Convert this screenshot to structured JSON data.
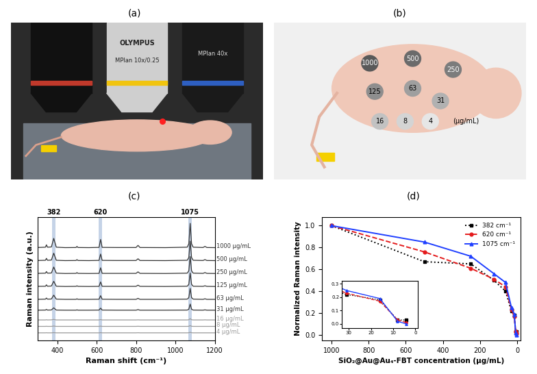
{
  "panels": {
    "labels": [
      "(a)",
      "(b)",
      "(c)",
      "(d)"
    ]
  },
  "photo_a": {
    "brand": "OLYMPUS",
    "objectives": [
      "MPlan 10x/0.25",
      "MPlan 40x"
    ]
  },
  "photo_b": {
    "spots": [
      "1000",
      "500",
      "250",
      "125",
      "63",
      "31",
      "16",
      "8",
      "4"
    ],
    "unit": "(μg/mL)"
  },
  "chart_data": [
    {
      "type": "line",
      "xlabel": "Raman shift (cm⁻¹)",
      "ylabel": "Raman intensity (a.u.)",
      "x": [
        300,
        340,
        345,
        350,
        370,
        382,
        395,
        440,
        495,
        500,
        505,
        560,
        612,
        620,
        628,
        700,
        800,
        810,
        820,
        950,
        1060,
        1068,
        1075,
        1082,
        1090,
        1140,
        1150,
        1160,
        1200
      ],
      "series": [
        {
          "name": "1000 μg/mL",
          "color": "#333333",
          "values": [
            8.65,
            8.68,
            8.9,
            8.68,
            8.7,
            9.5,
            8.68,
            8.64,
            8.65,
            8.75,
            8.65,
            8.64,
            8.66,
            9.4,
            8.66,
            8.65,
            8.65,
            8.85,
            8.65,
            8.64,
            8.68,
            9.0,
            10.9,
            9.0,
            8.68,
            8.65,
            8.75,
            8.65,
            8.64
          ]
        },
        {
          "name": "500 μg/mL",
          "color": "#333333",
          "values": [
            7.44,
            7.46,
            7.64,
            7.46,
            7.48,
            8.12,
            7.46,
            7.43,
            7.44,
            7.52,
            7.44,
            7.43,
            7.45,
            8.04,
            7.45,
            7.44,
            7.44,
            7.6,
            7.44,
            7.43,
            7.46,
            7.72,
            9.24,
            7.72,
            7.46,
            7.44,
            7.52,
            7.44,
            7.43
          ]
        },
        {
          "name": "250 μg/mL",
          "color": "#333333",
          "values": [
            6.24,
            6.26,
            6.41,
            6.26,
            6.27,
            6.83,
            6.26,
            6.23,
            6.24,
            6.31,
            6.24,
            6.23,
            6.24,
            6.76,
            6.24,
            6.24,
            6.24,
            6.38,
            6.24,
            6.23,
            6.26,
            6.48,
            7.81,
            6.48,
            6.26,
            6.24,
            6.31,
            6.24,
            6.23
          ]
        },
        {
          "name": "125 μg/mL",
          "color": "#333333",
          "values": [
            5.03,
            5.04,
            5.17,
            5.04,
            5.06,
            5.5,
            5.04,
            5.02,
            5.03,
            5.08,
            5.03,
            5.02,
            5.03,
            5.44,
            5.03,
            5.03,
            5.03,
            5.14,
            5.03,
            5.02,
            5.04,
            5.22,
            6.27,
            5.22,
            5.04,
            5.03,
            5.08,
            5.03,
            5.02
          ]
        },
        {
          "name": "63 μg/mL",
          "color": "#333333",
          "values": [
            3.82,
            3.84,
            3.94,
            3.84,
            3.85,
            4.21,
            3.84,
            3.82,
            3.82,
            3.87,
            3.82,
            3.82,
            3.83,
            4.16,
            3.83,
            3.82,
            3.82,
            3.91,
            3.82,
            3.82,
            3.84,
            3.98,
            4.84,
            3.98,
            3.84,
            3.82,
            3.87,
            3.82,
            3.82
          ]
        },
        {
          "name": "31 μg/mL",
          "color": "#333333",
          "values": [
            2.81,
            2.82,
            2.88,
            2.82,
            2.83,
            3.03,
            2.82,
            2.81,
            2.81,
            2.84,
            2.81,
            2.81,
            2.82,
            3.0,
            2.82,
            2.81,
            2.81,
            2.86,
            2.81,
            2.81,
            2.82,
            2.9,
            3.38,
            2.9,
            2.82,
            2.81,
            2.84,
            2.81,
            2.81
          ]
        },
        {
          "name": "16 μg/mL",
          "color": "#9a9a9a",
          "values": [
            1.9,
            1.9,
            1.92,
            1.9,
            1.91,
            1.95,
            1.9,
            1.9,
            1.9,
            1.91,
            1.9,
            1.9,
            1.9,
            1.94,
            1.9,
            1.9,
            1.9,
            1.91,
            1.9,
            1.9,
            1.9,
            1.92,
            2.02,
            1.92,
            1.9,
            1.9,
            1.91,
            1.9,
            1.9
          ]
        },
        {
          "name": "8 μg/mL",
          "color": "#9a9a9a",
          "values": [
            1.3,
            1.3,
            1.31,
            1.3,
            1.3,
            1.33,
            1.3,
            1.3,
            1.3,
            1.3,
            1.3,
            1.3,
            1.3,
            1.32,
            1.3,
            1.3,
            1.3,
            1.31,
            1.3,
            1.3,
            1.3,
            1.31,
            1.37,
            1.31,
            1.3,
            1.3,
            1.3,
            1.3,
            1.3
          ]
        },
        {
          "name": "4 μg/mL",
          "color": "#9a9a9a",
          "values": [
            0.7,
            0.7,
            0.71,
            0.7,
            0.7,
            0.72,
            0.7,
            0.7,
            0.7,
            0.7,
            0.7,
            0.7,
            0.7,
            0.72,
            0.7,
            0.7,
            0.7,
            0.71,
            0.7,
            0.7,
            0.7,
            0.71,
            0.75,
            0.71,
            0.7,
            0.7,
            0.7,
            0.7,
            0.7
          ]
        }
      ],
      "xlim": [
        300,
        1200
      ],
      "xticks": [
        400,
        600,
        800,
        1000,
        1200
      ],
      "ylim": [
        0,
        11.5
      ],
      "tick_labels": "x",
      "highlights": [
        382,
        620,
        1075
      ]
    },
    {
      "type": "line",
      "xlabel": "SiO₂@Au@Au₄-FBT concentration (μg/mL)",
      "ylabel": "Normalized Raman intensity",
      "x": [
        1000,
        500,
        250,
        125,
        63,
        31,
        16,
        8,
        4
      ],
      "series": [
        {
          "name": "382 cm⁻¹",
          "color": "#000000",
          "line_style": "dotted",
          "marker": "s",
          "values": [
            1.0,
            0.67,
            0.65,
            0.5,
            0.4,
            0.22,
            0.18,
            0.03,
            0.03
          ]
        },
        {
          "name": "620 cm⁻¹",
          "color": "#e41a1c",
          "line_style": "dashed",
          "marker": "o",
          "values": [
            1.0,
            0.76,
            0.61,
            0.51,
            0.44,
            0.23,
            0.17,
            0.03,
            0.01
          ]
        },
        {
          "name": "1075 cm⁻¹",
          "color": "#1f3fff",
          "line_style": "solid",
          "marker": "^",
          "values": [
            1.0,
            0.85,
            0.72,
            0.56,
            0.48,
            0.25,
            0.19,
            0.02,
            0.0
          ]
        }
      ],
      "xlim": [
        1050,
        -20
      ],
      "xticks": [
        1000,
        800,
        600,
        400,
        200,
        0
      ],
      "ylim": [
        -0.05,
        1.08
      ],
      "yticks": [
        {
          "value": 0,
          "label": "0.0"
        },
        {
          "value": 0.2,
          "label": "0.2"
        },
        {
          "value": 0.4,
          "label": "0.4"
        },
        {
          "value": 0.6,
          "label": "0.6"
        },
        {
          "value": 0.8,
          "label": "0.8"
        },
        {
          "value": 1.0,
          "label": "1.0"
        }
      ],
      "legend": "upper right",
      "inset": {
        "xlim": [
          33,
          -1
        ],
        "xticks": [
          30,
          20,
          10,
          0
        ],
        "ylim": [
          -0.03,
          0.32
        ],
        "yticks": [
          {
            "value": 0,
            "label": "0.0"
          },
          {
            "value": 0.1,
            "label": "0.1"
          },
          {
            "value": 0.2,
            "label": "0.2"
          },
          {
            "value": 0.3,
            "label": "0.3"
          }
        ]
      }
    }
  ]
}
